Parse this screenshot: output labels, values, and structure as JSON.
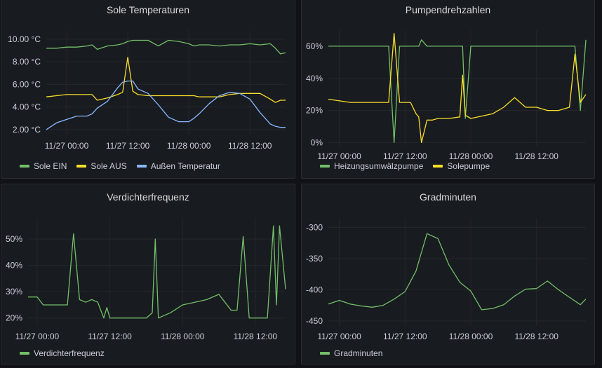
{
  "colors": {
    "green": "#73bf69",
    "yellow": "#fade2a",
    "blue": "#8ab8ff",
    "grid": "#24272c",
    "bg": "#181b1f"
  },
  "chart_data": [
    {
      "type": "line",
      "title": "Sole Temperaturen",
      "xticks": [
        "11/27 00:00",
        "11/27 12:00",
        "11/28 00:00",
        "11/28 12:00"
      ],
      "yticks": [
        "10.00 °C",
        "8.00 °C",
        "6.00 °C",
        "4.00 °C",
        "2.00 °C"
      ],
      "ylim": [
        1.5,
        10.8
      ],
      "yunit": "°C",
      "xlim": [
        -4,
        43
      ],
      "x": [
        -4,
        -2,
        0,
        2,
        4,
        5,
        6,
        8,
        10,
        11,
        12,
        13,
        14,
        16,
        18,
        20,
        22,
        24,
        25,
        26,
        28,
        30,
        32,
        34,
        36,
        38,
        40,
        41,
        42,
        43
      ],
      "series": [
        {
          "name": "Sole EIN",
          "color": "green",
          "values": [
            9.2,
            9.2,
            9.3,
            9.3,
            9.4,
            9.5,
            9.1,
            9.4,
            9.5,
            9.6,
            9.8,
            9.9,
            9.9,
            9.9,
            9.4,
            9.9,
            9.8,
            9.6,
            9.4,
            9.5,
            9.5,
            9.4,
            9.5,
            9.5,
            9.6,
            9.5,
            9.6,
            9.2,
            8.7,
            8.8
          ]
        },
        {
          "name": "Sole AUS",
          "color": "yellow",
          "values": [
            4.9,
            5.0,
            5.1,
            5.1,
            5.1,
            5.1,
            4.6,
            4.8,
            5.1,
            5.3,
            8.4,
            5.4,
            5.1,
            5.0,
            5.0,
            5.0,
            5.0,
            5.0,
            5.0,
            4.9,
            4.9,
            4.9,
            5.1,
            5.2,
            5.2,
            5.2,
            4.7,
            4.4,
            4.6,
            4.6
          ]
        },
        {
          "name": "Außen Temperatur",
          "color": "blue",
          "values": [
            2.0,
            2.6,
            2.9,
            3.2,
            3.2,
            3.4,
            3.9,
            4.5,
            5.7,
            6.2,
            6.3,
            6.3,
            5.6,
            5.2,
            4.2,
            3.1,
            2.7,
            2.7,
            3.0,
            3.4,
            4.3,
            5.0,
            5.3,
            5.2,
            4.7,
            3.5,
            2.5,
            2.3,
            2.2,
            2.2
          ]
        }
      ]
    },
    {
      "type": "line",
      "title": "Pumpendrehzahlen",
      "xticks": [
        "11/27 00:00",
        "11/27 12:00",
        "11/28 00:00",
        "11/28 12:00"
      ],
      "yticks": [
        "60%",
        "40%",
        "20%",
        "0%"
      ],
      "ylim": [
        -2,
        70
      ],
      "yunit": "%",
      "xlim": [
        -2,
        45
      ],
      "x": [
        -2,
        2,
        4,
        8,
        9,
        10,
        11,
        12,
        13,
        14,
        14.5,
        15,
        16,
        17,
        18,
        20,
        22,
        22.5,
        23,
        24,
        28,
        30,
        32,
        34,
        36,
        38,
        40,
        42,
        43,
        44,
        45
      ],
      "series": [
        {
          "name": "Heizungsumwälzpumpe",
          "color": "green",
          "values": [
            60,
            60,
            60,
            60,
            60,
            0,
            60,
            60,
            60,
            60,
            60,
            64,
            60,
            60,
            60,
            60,
            60,
            60,
            15,
            60,
            60,
            60,
            60,
            60,
            60,
            60,
            60,
            60,
            60,
            20,
            64
          ]
        },
        {
          "name": "Solepumpe",
          "color": "yellow",
          "values": [
            27,
            25,
            25,
            25,
            25,
            68,
            25,
            25,
            25,
            18,
            16,
            0,
            14,
            14,
            15,
            15,
            16,
            42,
            17,
            15,
            18,
            22,
            28,
            22,
            22,
            20,
            20,
            22,
            55,
            25,
            30
          ]
        }
      ]
    },
    {
      "type": "line",
      "title": "Verdichterfrequenz",
      "xticks": [
        "11/27 00:00",
        "11/27 12:00",
        "11/28 00:00",
        "11/28 12:00"
      ],
      "yticks": [
        "50%",
        "40%",
        "30%",
        "20%"
      ],
      "ylim": [
        17,
        58
      ],
      "yunit": "%",
      "xlim": [
        -1.5,
        41
      ],
      "x": [
        -1.5,
        0,
        1,
        2,
        5,
        6,
        7,
        8,
        9,
        10,
        10.5,
        11,
        11.5,
        12,
        16,
        18,
        19,
        19.5,
        20,
        22,
        24,
        26,
        28,
        30,
        31,
        32,
        33,
        34,
        35,
        36,
        36.5,
        37,
        38,
        39,
        39.5,
        40,
        41
      ],
      "series": [
        {
          "name": "Verdichterfrequenz",
          "color": "green",
          "values": [
            28,
            28,
            25,
            25,
            25,
            52,
            27,
            26,
            27,
            26,
            23,
            20,
            24,
            20,
            20,
            20,
            22,
            50,
            20,
            22,
            25,
            26,
            27,
            29,
            26,
            23,
            23,
            51,
            20,
            20,
            20,
            20,
            20,
            55,
            25,
            55,
            31
          ]
        }
      ]
    },
    {
      "type": "line",
      "title": "Gradminuten",
      "xticks": [
        "11/27 00:00",
        "11/27 12:00",
        "11/28 00:00",
        "11/28 12:00"
      ],
      "yticks": [
        "-300",
        "-350",
        "-400",
        "-450"
      ],
      "ylim": [
        -458,
        -285
      ],
      "xlim": [
        -2,
        45
      ],
      "x": [
        -2,
        0,
        2,
        4,
        6,
        8,
        10,
        12,
        14,
        15,
        16,
        18,
        20,
        22,
        24,
        26,
        28,
        30,
        32,
        34,
        36,
        38,
        40,
        42,
        44,
        45
      ],
      "series": [
        {
          "name": "Gradminuten",
          "color": "green",
          "values": [
            -423,
            -417,
            -423,
            -426,
            -428,
            -425,
            -415,
            -403,
            -370,
            -340,
            -310,
            -318,
            -360,
            -388,
            -402,
            -432,
            -430,
            -424,
            -410,
            -399,
            -398,
            -386,
            -400,
            -412,
            -424,
            -415
          ]
        }
      ]
    }
  ]
}
